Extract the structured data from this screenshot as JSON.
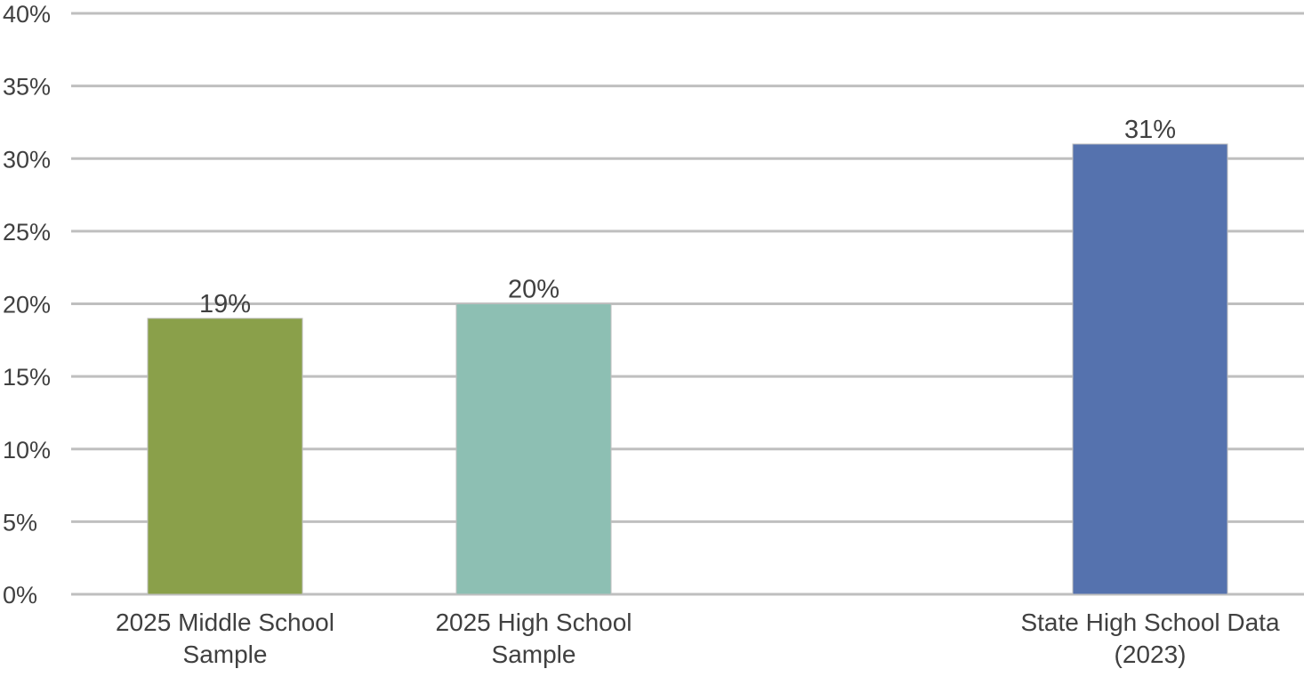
{
  "chart_data": {
    "type": "bar",
    "categories": [
      [
        "2025 Middle School",
        "Sample"
      ],
      [
        "2025 High School",
        "Sample"
      ],
      [
        "State High School Data",
        "(2023)"
      ]
    ],
    "values": [
      19,
      20,
      31
    ],
    "data_labels": [
      "19%",
      "20%",
      "31%"
    ],
    "colors": [
      "#8aa04a",
      "#8dbfb3",
      "#5572ae"
    ],
    "ylim": [
      0,
      40
    ],
    "yticks": [
      0,
      5,
      10,
      15,
      20,
      25,
      30,
      35,
      40
    ],
    "ytick_labels": [
      "0%",
      "5%",
      "10%",
      "15%",
      "20%",
      "25%",
      "30%",
      "35%",
      "40%"
    ],
    "grid": true,
    "grid_color": "#bfbfbf",
    "legend": "none",
    "title": "",
    "xlabel": "",
    "ylabel": ""
  }
}
